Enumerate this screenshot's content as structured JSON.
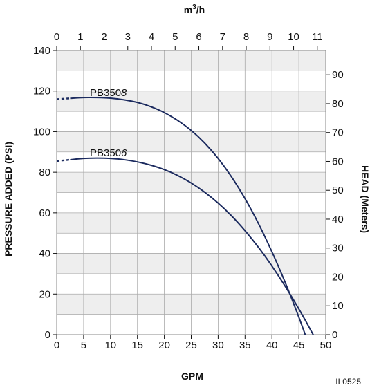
{
  "chart_data": {
    "type": "line",
    "x_top_label_base": "m",
    "x_top_label_sup": "3",
    "x_top_label_rest": "/h",
    "x_top_ticks": [
      "0",
      "1",
      "2",
      "3",
      "4",
      "5",
      "6",
      "7",
      "8",
      "9",
      "10",
      "11"
    ],
    "xlabel": "GPM",
    "x_ticks": [
      "0",
      "5",
      "10",
      "15",
      "20",
      "25",
      "30",
      "35",
      "40",
      "45",
      "50"
    ],
    "xlim": [
      0,
      50
    ],
    "ylabel": "PRESSURE ADDED (PSI)",
    "y_ticks": [
      "0",
      "20",
      "40",
      "60",
      "80",
      "100",
      "120",
      "140"
    ],
    "ylim": [
      0,
      140
    ],
    "y_right_label": "HEAD (Meters)",
    "y_right_ticks": [
      "0",
      "10",
      "20",
      "30",
      "40",
      "50",
      "60",
      "70",
      "80",
      "90"
    ],
    "grid": true,
    "code": "IL0525",
    "series": [
      {
        "name": "PB3508",
        "name_lead": "PB350",
        "name_tail": "8",
        "color": "#1b2a5e",
        "dashed_end_gpm": 2.5,
        "x": [
          0,
          2.5,
          5,
          7.5,
          10,
          12.5,
          15,
          17.5,
          20,
          22.5,
          25,
          27.5,
          30,
          32.5,
          35,
          37.5,
          40,
          42.5,
          45,
          47.5,
          49
        ],
        "y": [
          116,
          116.4,
          116.8,
          116.8,
          116.5,
          115.7,
          114.4,
          112.3,
          109.4,
          105.5,
          100.6,
          94.4,
          86.8,
          77.7,
          67,
          54.7,
          40.8,
          25.5,
          8.6,
          -9.7,
          -21
        ]
      },
      {
        "name": "PB3506",
        "name_lead": "PB350",
        "name_tail": "6",
        "color": "#1b2a5e",
        "dashed_end_gpm": 2.5,
        "x": [
          0,
          2.5,
          5,
          7.5,
          10,
          12.5,
          15,
          17.5,
          20,
          22.5,
          25,
          27.5,
          30,
          32.5,
          35,
          37.5,
          40,
          42.5,
          45,
          47.5,
          49
        ],
        "y": [
          85.5,
          86.2,
          86.8,
          87,
          86.8,
          86.2,
          85.1,
          83.5,
          81.3,
          78.4,
          74.7,
          70.2,
          64.8,
          58.5,
          51.2,
          43,
          33.8,
          23.7,
          12.7,
          0.8,
          -6.8
        ]
      }
    ]
  }
}
